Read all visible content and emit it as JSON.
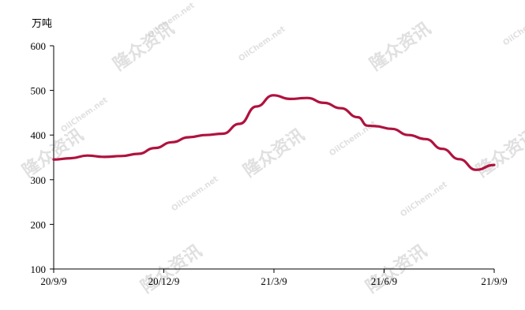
{
  "chart_data": {
    "type": "line",
    "title": "",
    "xlabel": "",
    "ylabel": "万吨",
    "ylim": [
      100,
      600
    ],
    "yticks": [
      100,
      200,
      300,
      400,
      500,
      600
    ],
    "xticks": [
      "20/9/9",
      "20/12/9",
      "21/3/9",
      "21/6/9",
      "21/9/9"
    ],
    "xlim": [
      "2020-09-09",
      "2021-09-09"
    ],
    "grid": false,
    "legend": "none",
    "series": [
      {
        "color": "#b0123e",
        "x": [
          "2020-09-09",
          "2020-09-23",
          "2020-10-07",
          "2020-10-21",
          "2020-11-04",
          "2020-11-18",
          "2020-12-02",
          "2020-12-16",
          "2020-12-30",
          "2021-01-13",
          "2021-01-27",
          "2021-02-10",
          "2021-02-24",
          "2021-03-10",
          "2021-03-24",
          "2021-04-07",
          "2021-04-21",
          "2021-05-05",
          "2021-05-19",
          "2021-05-27",
          "2021-06-02",
          "2021-06-16",
          "2021-06-30",
          "2021-07-14",
          "2021-07-28",
          "2021-08-11",
          "2021-08-25",
          "2021-09-09"
        ],
        "values": [
          345,
          348,
          354,
          351,
          353,
          358,
          371,
          384,
          395,
          400,
          403,
          425,
          464,
          489,
          481,
          483,
          472,
          460,
          440,
          421,
          420,
          414,
          400,
          391,
          369,
          346,
          322,
          333
        ]
      }
    ]
  },
  "watermark": {
    "brand": "隆众资讯",
    "site": "OilChem.net"
  }
}
